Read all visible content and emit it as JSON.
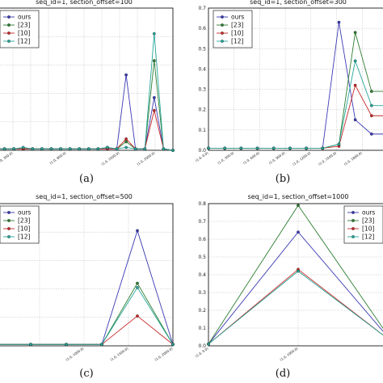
{
  "figure": {
    "panels": [
      {
        "caption": "(a)"
      },
      {
        "caption": "(b)"
      },
      {
        "caption": "(c)"
      },
      {
        "caption": "(d)"
      }
    ]
  },
  "chart_data": [
    {
      "type": "line",
      "title": "seq_id=1, section_offset=100",
      "grid": true,
      "legend_position": "top-left",
      "ylim": [
        0,
        1.0
      ],
      "yticks": [],
      "xticklabels": [
        "",
        "(1.0, 300.0)",
        "",
        "",
        "(1.0, 800.0)",
        "",
        "",
        "(1.0, 1500.0)",
        "",
        "(1.0, 2000.0)",
        ""
      ],
      "categories": [
        1,
        2,
        3,
        4,
        5,
        6,
        7,
        8,
        9,
        10,
        11,
        12,
        13,
        14,
        15,
        16,
        17,
        18,
        19,
        20
      ],
      "series": [
        {
          "name": "ours",
          "color": "#3a3ab4",
          "values": [
            0.01,
            0.01,
            0.01,
            0.01,
            0.01,
            0.01,
            0.01,
            0.01,
            0.01,
            0.01,
            0.01,
            0.01,
            0.01,
            0.01,
            0.53,
            0.01,
            0.01,
            0.37,
            0.01,
            0.0
          ]
        },
        {
          "name": "[23]",
          "color": "#2e7d32",
          "values": [
            0.01,
            0.01,
            0.01,
            0.01,
            0.01,
            0.01,
            0.01,
            0.01,
            0.01,
            0.01,
            0.01,
            0.01,
            0.02,
            0.01,
            0.06,
            0.01,
            0.01,
            0.63,
            0.01,
            0.0
          ]
        },
        {
          "name": "[10]",
          "color": "#c62828",
          "values": [
            0.01,
            0.01,
            0.01,
            0.01,
            0.01,
            0.01,
            0.01,
            0.01,
            0.01,
            0.01,
            0.01,
            0.01,
            0.01,
            0.01,
            0.08,
            0.01,
            0.01,
            0.28,
            0.01,
            0.0
          ]
        },
        {
          "name": "[12]",
          "color": "#26a69a",
          "values": [
            0.01,
            0.01,
            0.01,
            0.02,
            0.01,
            0.01,
            0.01,
            0.01,
            0.01,
            0.01,
            0.01,
            0.01,
            0.02,
            0.01,
            0.02,
            0.01,
            0.01,
            0.82,
            0.01,
            0.0
          ]
        }
      ]
    },
    {
      "type": "line",
      "title": "seq_id=1, section_offset=300",
      "grid": true,
      "legend_position": "top-left",
      "ylim": [
        0,
        0.7
      ],
      "yticks": [
        "0.0",
        "0.1",
        "0.2",
        "0.3",
        "0.4",
        "0.5",
        "0.6",
        "0.7"
      ],
      "xticklabels": [
        "(1.0, 0.0)",
        "(1.0, 300.0)",
        "(1.0, 600.0)",
        "(1.0, 900.0)",
        "(1.0, 1200.0)",
        "(1.0, 1500.0)",
        "(1.0, 1800.0)",
        ""
      ],
      "categories": [
        1,
        2,
        3,
        4,
        5,
        6,
        7,
        8,
        9,
        10,
        11,
        12
      ],
      "series": [
        {
          "name": "ours",
          "color": "#3a3ab4",
          "values": [
            0.01,
            0.01,
            0.01,
            0.01,
            0.01,
            0.01,
            0.01,
            0.01,
            0.63,
            0.15,
            0.08,
            0.08
          ]
        },
        {
          "name": "[23]",
          "color": "#2e7d32",
          "values": [
            0.01,
            0.01,
            0.01,
            0.01,
            0.01,
            0.01,
            0.01,
            0.01,
            0.03,
            0.58,
            0.29,
            0.29
          ]
        },
        {
          "name": "[10]",
          "color": "#c62828",
          "values": [
            0.01,
            0.01,
            0.01,
            0.01,
            0.01,
            0.01,
            0.01,
            0.01,
            0.02,
            0.32,
            0.17,
            0.17
          ]
        },
        {
          "name": "[12]",
          "color": "#26a69a",
          "values": [
            0.01,
            0.01,
            0.01,
            0.01,
            0.01,
            0.01,
            0.01,
            0.01,
            0.03,
            0.44,
            0.22,
            0.22
          ]
        }
      ]
    },
    {
      "type": "line",
      "title": "seq_id=1, section_offset=500",
      "grid": true,
      "legend_position": "top-left",
      "ylim": [
        0,
        1.0
      ],
      "yticks": [],
      "xticklabels": [
        "",
        "",
        "(1.0, 1000.0)",
        "(1.0, 1500.0)",
        "(1.0, 2000.0)"
      ],
      "categories": [
        1,
        2,
        3,
        4,
        5,
        6
      ],
      "series": [
        {
          "name": "ours",
          "color": "#3a3ab4",
          "values": [
            0.01,
            0.01,
            0.01,
            0.01,
            0.81,
            0.01
          ]
        },
        {
          "name": "[23]",
          "color": "#2e7d32",
          "values": [
            0.01,
            0.01,
            0.01,
            0.01,
            0.44,
            0.01
          ]
        },
        {
          "name": "[10]",
          "color": "#c62828",
          "values": [
            0.01,
            0.01,
            0.01,
            0.01,
            0.21,
            0.01
          ]
        },
        {
          "name": "[12]",
          "color": "#26a69a",
          "values": [
            0.01,
            0.01,
            0.01,
            0.01,
            0.41,
            0.01
          ]
        }
      ]
    },
    {
      "type": "line",
      "title": "seq_id=1, section_offset=1000",
      "grid": true,
      "legend_position": "top-right",
      "ylim": [
        0,
        0.8
      ],
      "yticks": [
        "0.0",
        "0.1",
        "0.2",
        "0.3",
        "0.4",
        "0.5",
        "0.6",
        "0.7",
        "0.8"
      ],
      "xticklabels": [
        "(1.0, 0.0)",
        "(1.0, 1000.0)",
        ""
      ],
      "categories": [
        0,
        1000,
        2000
      ],
      "series": [
        {
          "name": "ours",
          "color": "#3a3ab4",
          "values": [
            0.01,
            0.64,
            0.05
          ]
        },
        {
          "name": "[23]",
          "color": "#2e7d32",
          "values": [
            0.01,
            0.79,
            0.06
          ]
        },
        {
          "name": "[10]",
          "color": "#c62828",
          "values": [
            0.01,
            0.43,
            0.04
          ]
        },
        {
          "name": "[12]",
          "color": "#26a69a",
          "values": [
            0.01,
            0.42,
            0.04
          ]
        }
      ]
    }
  ]
}
